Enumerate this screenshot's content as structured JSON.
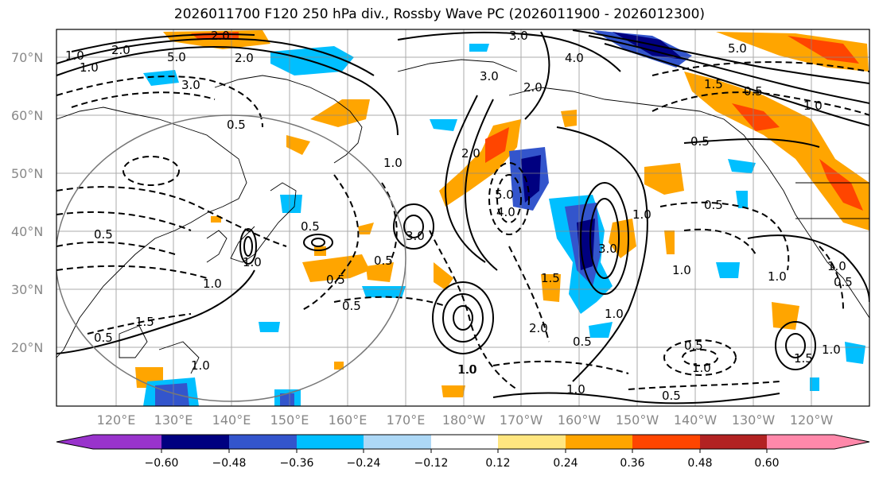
{
  "title": "2026011700 F120 250 hPa div., Rossby Wave PC (2026011900 - 2026012300)",
  "lat_labels": [
    "70°N",
    "60°N",
    "50°N",
    "40°N",
    "30°N",
    "20°N"
  ],
  "lon_labels": [
    "120°E",
    "130°E",
    "140°E",
    "150°E",
    "160°E",
    "170°E",
    "180°W",
    "170°W",
    "160°W",
    "150°W",
    "140°W",
    "130°W",
    "120°W"
  ],
  "colorbar": {
    "colors": [
      "#9933cc",
      "#000080",
      "#3355cc",
      "#00bfff",
      "#add8f6",
      "#ffffff",
      "#ffe680",
      "#ffa500",
      "#ff4500",
      "#b22222",
      "#ff88aa"
    ],
    "ticks": [
      "−0.60",
      "−0.48",
      "−0.36",
      "−0.24",
      "−0.12",
      "0.12",
      "0.24",
      "0.36",
      "0.48",
      "0.60"
    ]
  },
  "contour_labels": [
    "2.0",
    "1.0",
    "2.0",
    "3.0",
    "1.0",
    "5.0",
    "3.0",
    "2.0",
    "4.0",
    "0.5",
    "0.5",
    "3.0",
    "5.0",
    "1.5",
    "0.5",
    "1.0",
    "0.5",
    "0.5",
    "1.0",
    "5.0",
    "4.0",
    "2.0",
    "1.0",
    "0.5",
    "3.0",
    "1.0",
    "0.5",
    "1.0",
    "0.5",
    "0.5",
    "1.0",
    "0.5",
    "1.0",
    "1.0",
    "1.5",
    "1.0",
    "1.0",
    "1.0",
    "0.5",
    "2.0",
    "1.0",
    "0.5",
    "1.0",
    "1.5",
    "1.0",
    "3.0",
    "2.0",
    "1.5",
    "0.5",
    "0.5",
    "1.0"
  ]
}
